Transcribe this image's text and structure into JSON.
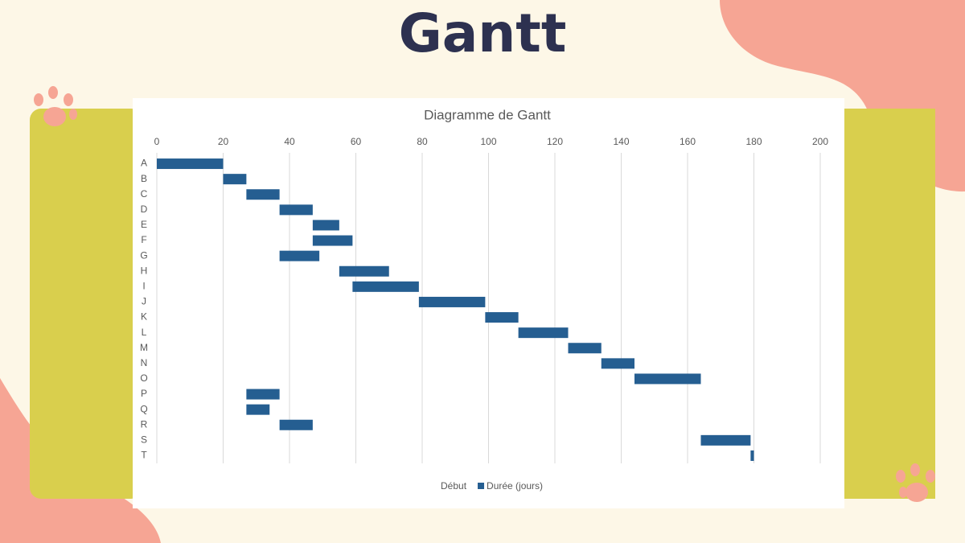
{
  "slide_title": "Gantt",
  "chart_data": {
    "type": "bar",
    "orientation": "horizontal",
    "stacked": true,
    "title": "Diagramme de Gantt",
    "categories": [
      "A",
      "B",
      "C",
      "D",
      "E",
      "F",
      "G",
      "H",
      "I",
      "J",
      "K",
      "L",
      "M",
      "N",
      "O",
      "P",
      "Q",
      "R",
      "S",
      "T"
    ],
    "series": [
      {
        "name": "Début",
        "values": [
          0,
          20,
          27,
          37,
          47,
          47,
          37,
          55,
          59,
          79,
          99,
          109,
          124,
          134,
          144,
          27,
          27,
          37,
          164,
          179
        ]
      },
      {
        "name": "Durée (jours)",
        "color": "#255e91",
        "values": [
          20,
          7,
          10,
          10,
          8,
          12,
          12,
          15,
          20,
          20,
          10,
          15,
          10,
          10,
          20,
          10,
          7,
          10,
          15,
          1
        ]
      }
    ],
    "xlim": [
      0,
      200
    ],
    "xticks": [
      0,
      20,
      40,
      60,
      80,
      100,
      120,
      140,
      160,
      180,
      200
    ],
    "grid": true,
    "legend": "bottom"
  }
}
